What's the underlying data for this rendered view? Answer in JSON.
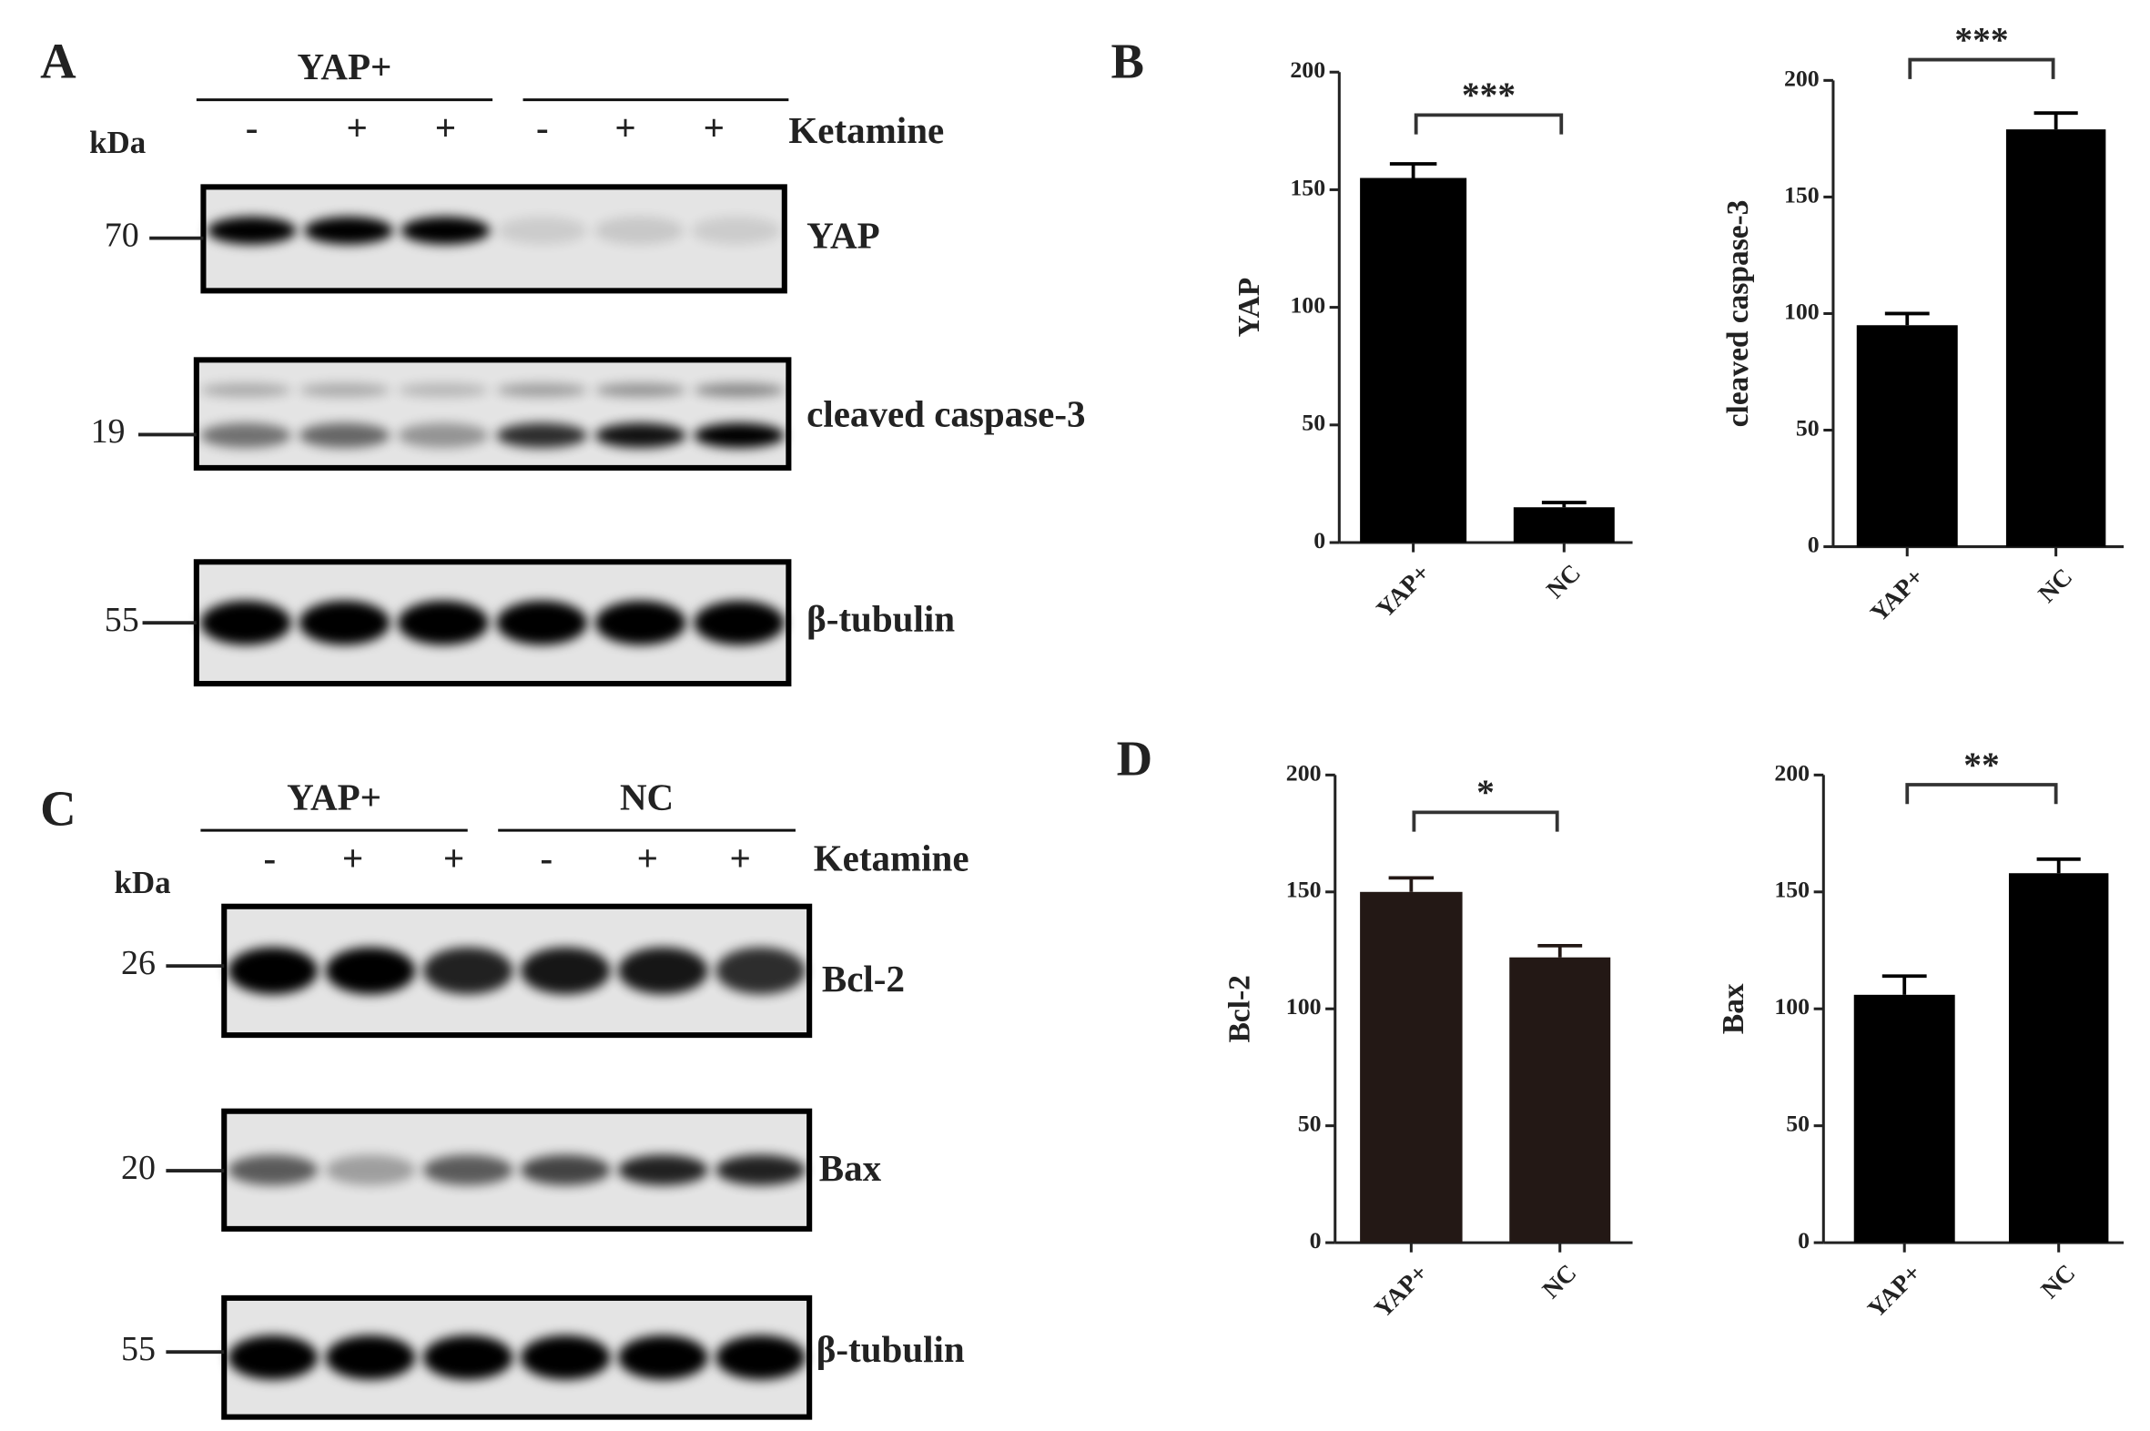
{
  "panels": {
    "A": {
      "label": "A",
      "unit": "kDa",
      "groups": [
        "YAP+",
        null
      ],
      "treatments": [
        "-",
        "+",
        "+",
        "-",
        "+",
        "+"
      ],
      "treatment_label": "Ketamine",
      "blots": [
        {
          "marker": 70,
          "protein": "YAP"
        },
        {
          "marker": 19,
          "protein": "cleaved caspase-3"
        },
        {
          "marker": 55,
          "protein": "β-tubulin"
        }
      ]
    },
    "B": {
      "label": "B"
    },
    "C": {
      "label": "C",
      "unit": "kDa",
      "groups": [
        "YAP+",
        "NC"
      ],
      "treatments": [
        "-",
        "+",
        "+",
        "-",
        "+",
        "+"
      ],
      "treatment_label": "Ketamine",
      "blots": [
        {
          "marker": 26,
          "protein": "Bcl-2"
        },
        {
          "marker": 20,
          "protein": "Bax"
        },
        {
          "marker": 55,
          "protein": "β-tubulin"
        }
      ]
    },
    "D": {
      "label": "D"
    }
  },
  "chart_data": [
    {
      "type": "bar",
      "y_label": "YAP",
      "categories": [
        "YAP+",
        "NC"
      ],
      "values": [
        155,
        15
      ],
      "errors": [
        6,
        2
      ],
      "color": "#000000",
      "annotation": "***",
      "ylim": [
        0,
        200
      ],
      "yticks": [
        0,
        50,
        100,
        150,
        200
      ]
    },
    {
      "type": "bar",
      "y_label": "cleaved caspase-3",
      "categories": [
        "YAP+",
        "NC"
      ],
      "values": [
        95,
        179
      ],
      "errors": [
        5,
        7
      ],
      "color": "#000000",
      "annotation": "***",
      "ylim": [
        0,
        200
      ],
      "yticks": [
        0,
        50,
        100,
        150,
        200
      ]
    },
    {
      "type": "bar",
      "y_label": "Bcl-2",
      "categories": [
        "YAP+",
        "NC"
      ],
      "values": [
        150,
        122
      ],
      "errors": [
        6,
        5
      ],
      "color": "#231815",
      "annotation": "*",
      "ylim": [
        0,
        200
      ],
      "yticks": [
        0,
        50,
        100,
        150,
        200
      ]
    },
    {
      "type": "bar",
      "y_label": "Bax",
      "categories": [
        "YAP+",
        "NC"
      ],
      "values": [
        106,
        158
      ],
      "errors": [
        8,
        6
      ],
      "color": "#000000",
      "annotation": "**",
      "ylim": [
        0,
        200
      ],
      "yticks": [
        0,
        50,
        100,
        150,
        200
      ]
    }
  ]
}
